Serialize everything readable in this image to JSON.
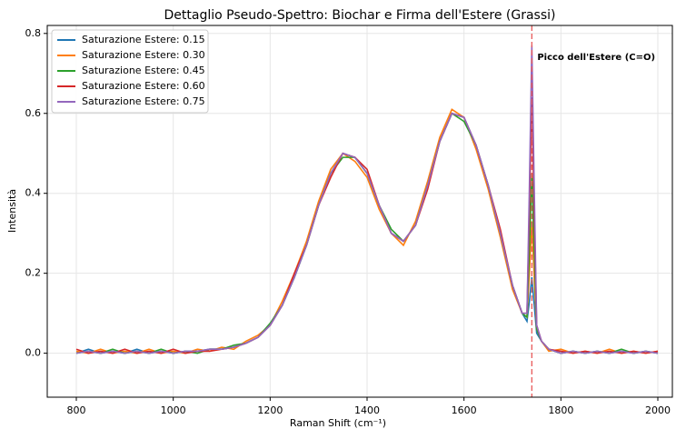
{
  "chart_data": {
    "type": "line",
    "title": "Dettaglio Pseudo-Spettro: Biochar e Firma dell'Estere (Grassi)",
    "x_label": "Raman Shift (cm⁻¹)",
    "y_label": "Intensità",
    "x": [
      800,
      825,
      850,
      875,
      900,
      925,
      950,
      975,
      1000,
      1025,
      1050,
      1075,
      1100,
      1125,
      1150,
      1175,
      1200,
      1225,
      1250,
      1275,
      1300,
      1325,
      1350,
      1375,
      1400,
      1425,
      1450,
      1475,
      1500,
      1525,
      1550,
      1575,
      1600,
      1625,
      1650,
      1675,
      1700,
      1720,
      1730,
      1735,
      1740,
      1745,
      1750,
      1760,
      1775,
      1800,
      1825,
      1850,
      1875,
      1900,
      1925,
      1950,
      1975,
      2000
    ],
    "series": [
      {
        "name": "Saturazione Estere: 0.15",
        "color": "#1f77b4",
        "values": [
          0,
          0.01,
          0,
          0.005,
          0,
          0.01,
          0,
          0.005,
          0,
          0.005,
          0.005,
          0.01,
          0.01,
          0.015,
          0.025,
          0.04,
          0.07,
          0.12,
          0.19,
          0.27,
          0.37,
          0.45,
          0.5,
          0.49,
          0.45,
          0.37,
          0.3,
          0.28,
          0.32,
          0.42,
          0.53,
          0.6,
          0.59,
          0.52,
          0.42,
          0.3,
          0.17,
          0.1,
          0.08,
          0.13,
          0.19,
          0.12,
          0.05,
          0.03,
          0.01,
          0,
          0.005,
          0,
          0.005,
          0,
          0.005,
          0,
          0.005,
          0
        ]
      },
      {
        "name": "Saturazione Estere: 0.30",
        "color": "#ff7f0e",
        "values": [
          0.005,
          0,
          0.01,
          0,
          0.005,
          0,
          0.01,
          0,
          0.005,
          0,
          0.01,
          0.005,
          0.015,
          0.01,
          0.03,
          0.045,
          0.07,
          0.13,
          0.2,
          0.28,
          0.38,
          0.46,
          0.5,
          0.48,
          0.44,
          0.36,
          0.3,
          0.27,
          0.33,
          0.43,
          0.54,
          0.61,
          0.59,
          0.51,
          0.41,
          0.29,
          0.16,
          0.1,
          0.09,
          0.2,
          0.33,
          0.19,
          0.06,
          0.03,
          0.005,
          0.01,
          0,
          0.005,
          0,
          0.01,
          0,
          0.005,
          0,
          0.005
        ]
      },
      {
        "name": "Saturazione Estere: 0.45",
        "color": "#2ca02c",
        "values": [
          0,
          0.005,
          0,
          0.01,
          0,
          0.005,
          0,
          0.01,
          0,
          0.005,
          0,
          0.01,
          0.01,
          0.02,
          0.025,
          0.04,
          0.075,
          0.12,
          0.19,
          0.27,
          0.37,
          0.45,
          0.49,
          0.49,
          0.45,
          0.37,
          0.31,
          0.28,
          0.32,
          0.42,
          0.53,
          0.6,
          0.58,
          0.52,
          0.42,
          0.3,
          0.17,
          0.1,
          0.09,
          0.26,
          0.45,
          0.25,
          0.06,
          0.03,
          0.01,
          0,
          0.005,
          0,
          0.005,
          0,
          0.01,
          0,
          0.005,
          0
        ]
      },
      {
        "name": "Saturazione Estere: 0.60",
        "color": "#d62728",
        "values": [
          0.01,
          0,
          0.005,
          0,
          0.01,
          0,
          0.005,
          0,
          0.01,
          0,
          0.005,
          0.005,
          0.01,
          0.015,
          0.025,
          0.04,
          0.07,
          0.12,
          0.2,
          0.27,
          0.37,
          0.44,
          0.5,
          0.49,
          0.46,
          0.37,
          0.3,
          0.28,
          0.32,
          0.41,
          0.53,
          0.6,
          0.59,
          0.52,
          0.42,
          0.31,
          0.17,
          0.1,
          0.1,
          0.36,
          0.64,
          0.34,
          0.07,
          0.03,
          0.01,
          0.005,
          0,
          0.005,
          0,
          0.005,
          0,
          0.005,
          0,
          0.005
        ]
      },
      {
        "name": "Saturazione Estere: 0.75",
        "color": "#9467bd",
        "values": [
          0,
          0.005,
          0,
          0.005,
          0,
          0.005,
          0,
          0.005,
          0,
          0.005,
          0.005,
          0.01,
          0.01,
          0.015,
          0.025,
          0.04,
          0.07,
          0.12,
          0.19,
          0.27,
          0.37,
          0.45,
          0.5,
          0.49,
          0.45,
          0.37,
          0.3,
          0.28,
          0.32,
          0.42,
          0.53,
          0.6,
          0.59,
          0.52,
          0.42,
          0.3,
          0.17,
          0.1,
          0.1,
          0.42,
          0.77,
          0.41,
          0.07,
          0.03,
          0.01,
          0,
          0.005,
          0,
          0.005,
          0,
          0.005,
          0,
          0.005,
          0
        ]
      }
    ],
    "reference_line": {
      "x": 1740,
      "color": "#e8595a"
    },
    "annotation": {
      "text": "Picco dell'Estere (C=O)",
      "color": "#ff0000"
    },
    "xlim": [
      740,
      2030
    ],
    "ylim": [
      -0.11,
      0.82
    ],
    "xticks": [
      800,
      1000,
      1200,
      1400,
      1600,
      1800,
      2000
    ],
    "yticks": [
      {
        "value": 0,
        "label": "0.0"
      },
      0.2,
      0.4,
      0.6,
      0.8
    ],
    "grid": true,
    "legend": "upper left"
  }
}
